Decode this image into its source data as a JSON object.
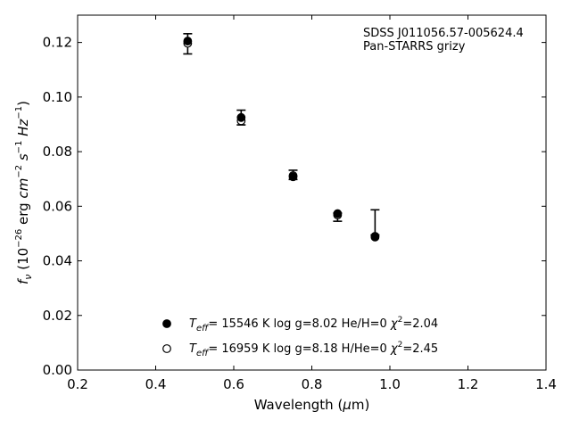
{
  "chart_data": {
    "type": "scatter",
    "annotations": [
      "SDSS J011056.57-005624.4",
      "Pan-STARRS grizy"
    ],
    "xlabel": {
      "pre": "Wavelength (",
      "greek": "μ",
      "post": "m)"
    },
    "ylabel": {
      "base": "f",
      "sub": "ν",
      "text": "(10",
      "exp": "−26",
      "units": [
        {
          "t": " erg "
        },
        {
          "t": "cm",
          "it": true
        },
        {
          "t": "−2",
          "sup": true
        },
        {
          "t": " "
        },
        {
          "t": "s",
          "it": true
        },
        {
          "t": "−1",
          "sup": true
        },
        {
          "t": " "
        },
        {
          "t": "Hz",
          "it": true
        },
        {
          "t": "−1",
          "sup": true
        },
        {
          "t": ")"
        }
      ]
    },
    "xlim": [
      0.2,
      1.4
    ],
    "ylim": [
      0.0,
      0.13
    ],
    "xticks": [
      0.2,
      0.4,
      0.6,
      0.8,
      1.0,
      1.2,
      1.4
    ],
    "xtick_labels": [
      "0.2",
      "0.4",
      "0.6",
      "0.8",
      "1.0",
      "1.2",
      "1.4"
    ],
    "yticks": [
      0.0,
      0.02,
      0.04,
      0.06,
      0.08,
      0.1,
      0.12
    ],
    "ytick_labels": [
      "0.00",
      "0.02",
      "0.04",
      "0.06",
      "0.08",
      "0.10",
      "0.12"
    ],
    "observed": {
      "x": [
        0.482,
        0.619,
        0.752,
        0.866,
        0.962
      ],
      "y": [
        0.1195,
        0.0925,
        0.0715,
        0.0565,
        0.0495
      ],
      "err_low": [
        0.1158,
        0.0898,
        0.0698,
        0.0545,
        0.0495
      ],
      "err_high": [
        0.1232,
        0.0952,
        0.0732,
        0.0575,
        0.0587
      ]
    },
    "series": [
      {
        "legend": "= 15546 K  log g=8.02  He/H=0  ",
        "chi2": "=2.04",
        "marker": "filled",
        "x": [
          0.482,
          0.619,
          0.752,
          0.866,
          0.962
        ],
        "y": [
          0.1205,
          0.0925,
          0.0708,
          0.0573,
          0.0487
        ]
      },
      {
        "legend": "= 16959 K  log g=8.18  H/He=0  ",
        "chi2": "=2.45",
        "marker": "open",
        "x": [
          0.482,
          0.619,
          0.752,
          0.866,
          0.962
        ],
        "y": [
          0.1197,
          0.0913,
          0.0712,
          0.0568,
          0.049
        ]
      }
    ],
    "teff_symbol": {
      "base": "T",
      "sub": "eff"
    },
    "chi_symbol": {
      "base": "χ",
      "sup": "2"
    },
    "colors": {
      "marker": "#000000",
      "axes": "#000000",
      "background": "#ffffff"
    },
    "grid": false,
    "legend_position": "lower-left"
  }
}
